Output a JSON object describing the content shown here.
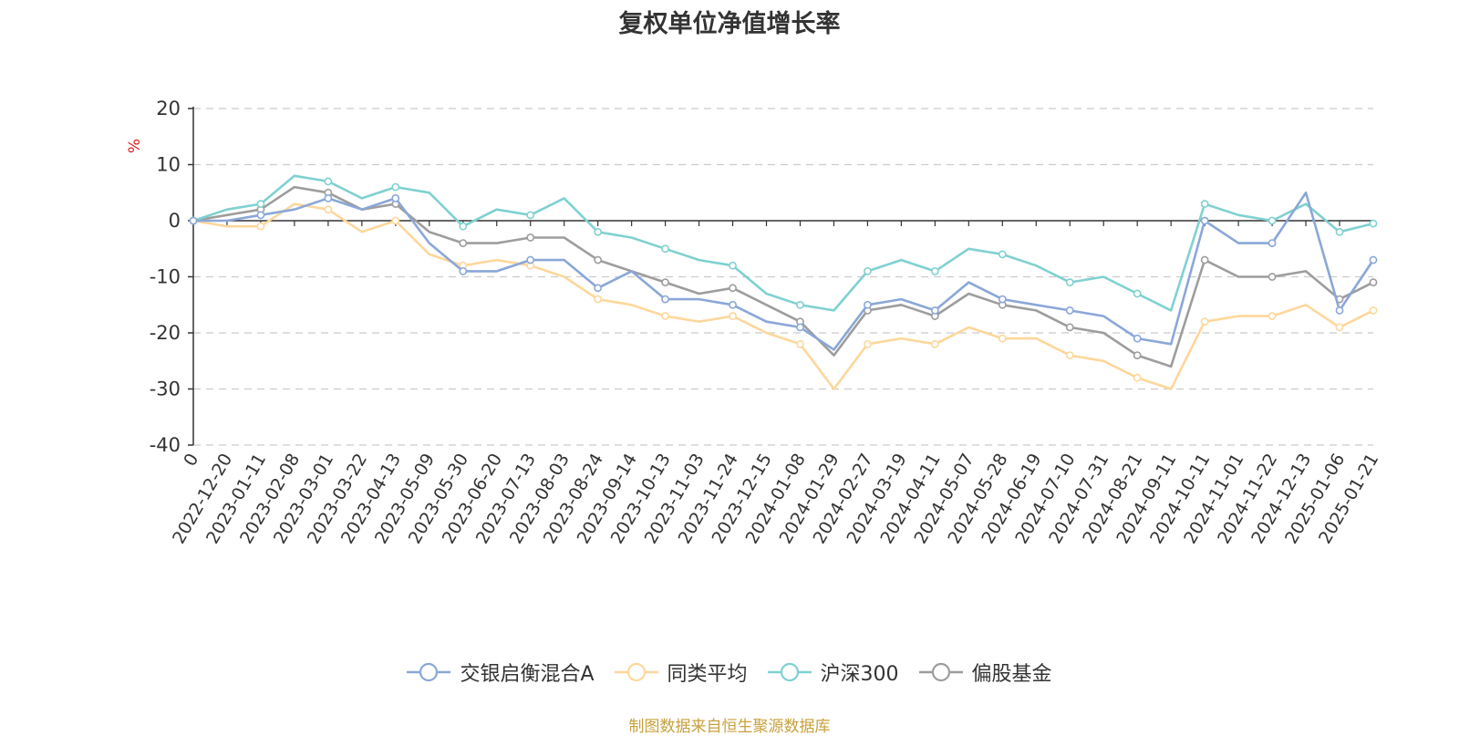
{
  "chart_data": {
    "type": "line",
    "title": "复权单位净值增长率",
    "ylabel": "%",
    "xlabel": "",
    "ylim": [
      -40,
      20
    ],
    "yticks": [
      20,
      10,
      0,
      -10,
      -20,
      -30,
      -40
    ],
    "grid": true,
    "legend_position": "bottom",
    "x": [
      "0",
      "2022-12-20",
      "2023-01-11",
      "2023-02-08",
      "2023-03-01",
      "2023-03-22",
      "2023-04-13",
      "2023-05-09",
      "2023-05-30",
      "2023-06-20",
      "2023-07-13",
      "2023-08-03",
      "2023-08-24",
      "2023-09-14",
      "2023-10-13",
      "2023-11-03",
      "2023-11-24",
      "2023-12-15",
      "2024-01-08",
      "2024-01-29",
      "2024-02-27",
      "2024-03-19",
      "2024-04-11",
      "2024-05-07",
      "2024-05-28",
      "2024-06-19",
      "2024-07-10",
      "2024-07-31",
      "2024-08-21",
      "2024-09-11",
      "2024-10-11",
      "2024-11-01",
      "2024-11-22",
      "2024-12-13",
      "2025-01-06",
      "2025-01-21"
    ],
    "series": [
      {
        "name": "交银启衡混合A",
        "color": "#8aa7d7",
        "values": [
          0,
          0,
          1,
          2,
          4,
          2,
          4,
          -4,
          -9,
          -9,
          -7,
          -7,
          -12,
          -9,
          -14,
          -14,
          -15,
          -18,
          -19,
          -23,
          -15,
          -14,
          -16,
          -11,
          -14,
          -15,
          -16,
          -17,
          -21,
          -22,
          0,
          -4,
          -4,
          5,
          -16,
          -7
        ]
      },
      {
        "name": "同类平均",
        "color": "#fdd79b",
        "values": [
          0,
          -1,
          -1,
          3,
          2,
          -2,
          0,
          -6,
          -8,
          -7,
          -8,
          -10,
          -14,
          -15,
          -17,
          -18,
          -17,
          -20,
          -22,
          -30,
          -22,
          -21,
          -22,
          -19,
          -21,
          -21,
          -24,
          -25,
          -28,
          -30,
          -18,
          -17,
          -17,
          -15,
          -19,
          -16
        ]
      },
      {
        "name": "沪深300",
        "color": "#7fd1d0",
        "values": [
          0,
          2,
          3,
          8,
          7,
          4,
          6,
          5,
          -1,
          2,
          1,
          4,
          -2,
          -3,
          -5,
          -7,
          -8,
          -13,
          -15,
          -16,
          -9,
          -7,
          -9,
          -5,
          -6,
          -8,
          -11,
          -10,
          -13,
          -16,
          3,
          1,
          0,
          3,
          -2,
          -0.5
        ]
      },
      {
        "name": "偏股基金",
        "color": "#9d9d9d",
        "values": [
          0,
          1,
          2,
          6,
          5,
          2,
          3,
          -2,
          -4,
          -4,
          -3,
          -3,
          -7,
          -9,
          -11,
          -13,
          -12,
          -15,
          -18,
          -24,
          -16,
          -15,
          -17,
          -13,
          -15,
          -16,
          -19,
          -20,
          -24,
          -26,
          -7,
          -10,
          -10,
          -9,
          -14,
          -11
        ]
      }
    ]
  },
  "source_note": "制图数据来自恒生聚源数据库"
}
